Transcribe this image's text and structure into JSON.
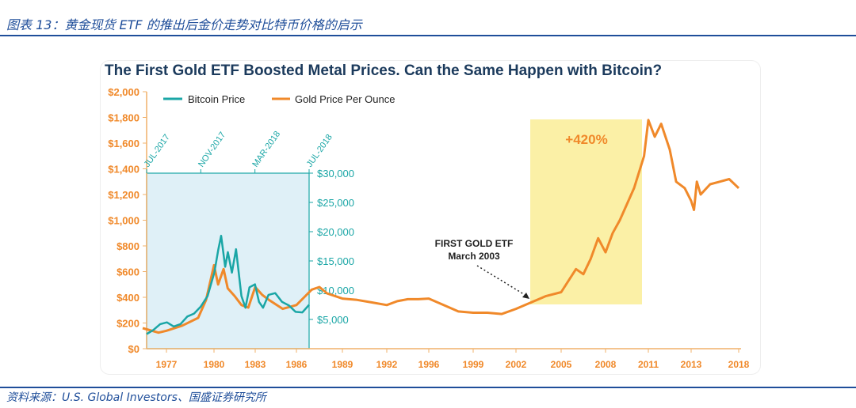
{
  "caption": "图表 13：黄金现货 ETF 的推出后金价走势对比特币价格的启示",
  "source": "资料来源：U.S. Global Investors、国盛证券研究所",
  "colors": {
    "gold": "#f0892a",
    "bitcoin": "#1aa6a6",
    "title": "#1b3a5c",
    "caption": "#1f4e9a",
    "btc_panel": "#dff0f7",
    "highlight": "#fbf0a6"
  },
  "chart_data": {
    "type": "line",
    "title": "The First Gold ETF Boosted Metal Prices. Can the Same Happen with Bitcoin?",
    "legend": [
      "Bitcoin Price",
      "Gold Price Per Ounce"
    ],
    "legend_placement": "top-left",
    "y_left": {
      "ticks": [
        "$0",
        "$200",
        "$400",
        "$600",
        "$800",
        "$1,000",
        "$1,200",
        "$1,400",
        "$1,600",
        "$1,800",
        "$2,000"
      ],
      "range": [
        0,
        2000
      ]
    },
    "x_bottom": {
      "ticks": [
        "1977",
        "1980",
        "1983",
        "1986",
        "1989",
        "1992",
        "1996",
        "1999",
        "2002",
        "2005",
        "2008",
        "2011",
        "2013",
        "2018"
      ]
    },
    "y_right_bitcoin": {
      "ticks": [
        "$5,000",
        "$10,000",
        "$15,000",
        "$20,000",
        "$25,000",
        "$30,000"
      ],
      "range": [
        0,
        30000
      ]
    },
    "x_top_bitcoin": {
      "ticks": [
        "JUL-2017",
        "NOV-2017",
        "MAR-2018",
        "JUL-2018"
      ]
    },
    "annotations": {
      "etf_line1": "FIRST GOLD ETF",
      "etf_line2": "March 2003",
      "gain": "+420%"
    },
    "gold": [
      [
        1975.5,
        160
      ],
      [
        1976.5,
        125
      ],
      [
        1977,
        140
      ],
      [
        1978,
        180
      ],
      [
        1979,
        240
      ],
      [
        1979.5,
        380
      ],
      [
        1980,
        650
      ],
      [
        1980.3,
        500
      ],
      [
        1980.7,
        620
      ],
      [
        1981,
        470
      ],
      [
        1981.5,
        410
      ],
      [
        1982,
        340
      ],
      [
        1982.5,
        320
      ],
      [
        1983,
        480
      ],
      [
        1983.5,
        420
      ],
      [
        1984,
        380
      ],
      [
        1985,
        310
      ],
      [
        1986,
        340
      ],
      [
        1986.5,
        400
      ],
      [
        1987,
        460
      ],
      [
        1987.5,
        480
      ],
      [
        1988,
        430
      ],
      [
        1989,
        390
      ],
      [
        1990,
        380
      ],
      [
        1991,
        360
      ],
      [
        1992,
        340
      ],
      [
        1993,
        370
      ],
      [
        1994,
        385
      ],
      [
        1995,
        385
      ],
      [
        1996,
        390
      ],
      [
        1997,
        340
      ],
      [
        1998,
        290
      ],
      [
        1999,
        280
      ],
      [
        2000,
        280
      ],
      [
        2001,
        270
      ],
      [
        2002,
        310
      ],
      [
        2003,
        360
      ],
      [
        2004,
        410
      ],
      [
        2005,
        440
      ],
      [
        2006,
        620
      ],
      [
        2006.5,
        580
      ],
      [
        2007,
        700
      ],
      [
        2007.5,
        860
      ],
      [
        2008,
        750
      ],
      [
        2008.5,
        900
      ],
      [
        2009,
        1000
      ],
      [
        2010,
        1250
      ],
      [
        2010.7,
        1500
      ],
      [
        2011,
        1780
      ],
      [
        2011.3,
        1650
      ],
      [
        2011.6,
        1750
      ],
      [
        2012,
        1550
      ],
      [
        2012.3,
        1300
      ],
      [
        2012.7,
        1250
      ],
      [
        2013,
        1150
      ],
      [
        2013.3,
        1080
      ],
      [
        2013.6,
        1300
      ],
      [
        2014,
        1200
      ],
      [
        2015,
        1280
      ],
      [
        2016,
        1300
      ],
      [
        2017,
        1320
      ],
      [
        2018,
        1250
      ]
    ],
    "bitcoin_month_index": [
      [
        0,
        2500
      ],
      [
        0.5,
        3200
      ],
      [
        1,
        4200
      ],
      [
        1.5,
        4500
      ],
      [
        2,
        3800
      ],
      [
        2.5,
        4200
      ],
      [
        3,
        5500
      ],
      [
        3.5,
        6000
      ],
      [
        4,
        7200
      ],
      [
        4.5,
        9000
      ],
      [
        5,
        13000
      ],
      [
        5.3,
        17000
      ],
      [
        5.5,
        19300
      ],
      [
        5.8,
        14000
      ],
      [
        6,
        16500
      ],
      [
        6.3,
        13000
      ],
      [
        6.6,
        17000
      ],
      [
        7,
        9000
      ],
      [
        7.3,
        7000
      ],
      [
        7.6,
        10500
      ],
      [
        8,
        11000
      ],
      [
        8.3,
        8000
      ],
      [
        8.6,
        7000
      ],
      [
        9,
        9200
      ],
      [
        9.5,
        9500
      ],
      [
        10,
        8000
      ],
      [
        10.5,
        7400
      ],
      [
        11,
        6300
      ],
      [
        11.5,
        6200
      ],
      [
        12,
        7500
      ]
    ]
  }
}
